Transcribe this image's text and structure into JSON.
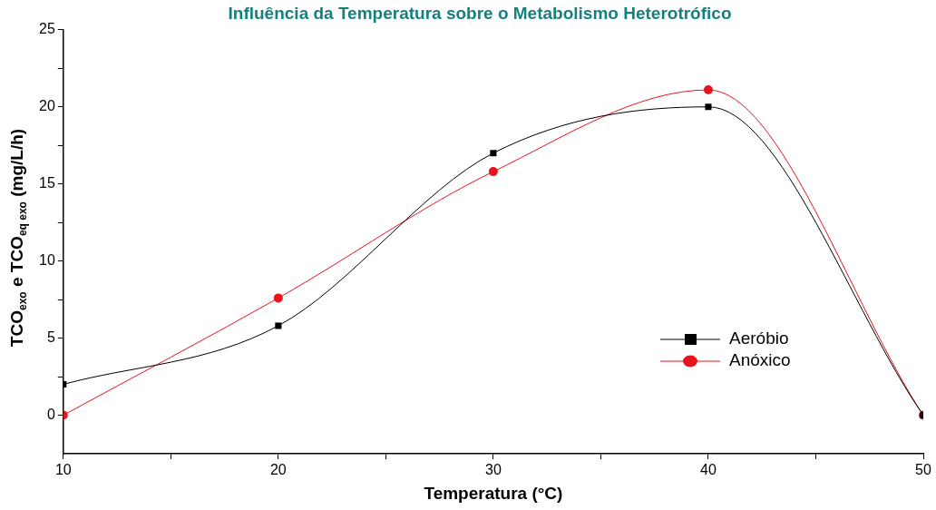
{
  "chart_data": {
    "type": "line",
    "title": "Influência da Temperatura sobre o Metabolismo Heterotrófico",
    "xlabel": "Temperatura (°C)",
    "ylabel": "TCO$_{exo}$ e TCO$_{eq exo}$ (mg/L/h)",
    "x": [
      10,
      20,
      30,
      40,
      50
    ],
    "series": [
      {
        "name": "Aeróbio",
        "color": "#000000",
        "marker": "square",
        "values": [
          2.0,
          5.8,
          17.0,
          20.0,
          0
        ]
      },
      {
        "name": "Anóxico",
        "color": "#e8141c",
        "marker": "circle",
        "values": [
          0,
          7.6,
          15.8,
          21.1,
          0
        ]
      }
    ],
    "xlim": [
      10,
      50
    ],
    "xticks": [
      10,
      {
        "value": 15,
        "label": null
      },
      20,
      {
        "value": 25,
        "label": null
      },
      30,
      {
        "value": 35,
        "label": null
      },
      40,
      {
        "value": 45,
        "label": null
      },
      50
    ],
    "ylim": [
      -2.5,
      25
    ],
    "yticks": [
      0,
      {
        "value": 2.5,
        "label": null
      },
      5,
      {
        "value": 7.5,
        "label": null
      },
      10,
      {
        "value": 12.5,
        "label": null
      },
      15,
      {
        "value": 17.5,
        "label": null
      },
      20,
      {
        "value": 22.5,
        "label": null
      },
      25
    ],
    "grid": false,
    "legend": "bottom right"
  }
}
